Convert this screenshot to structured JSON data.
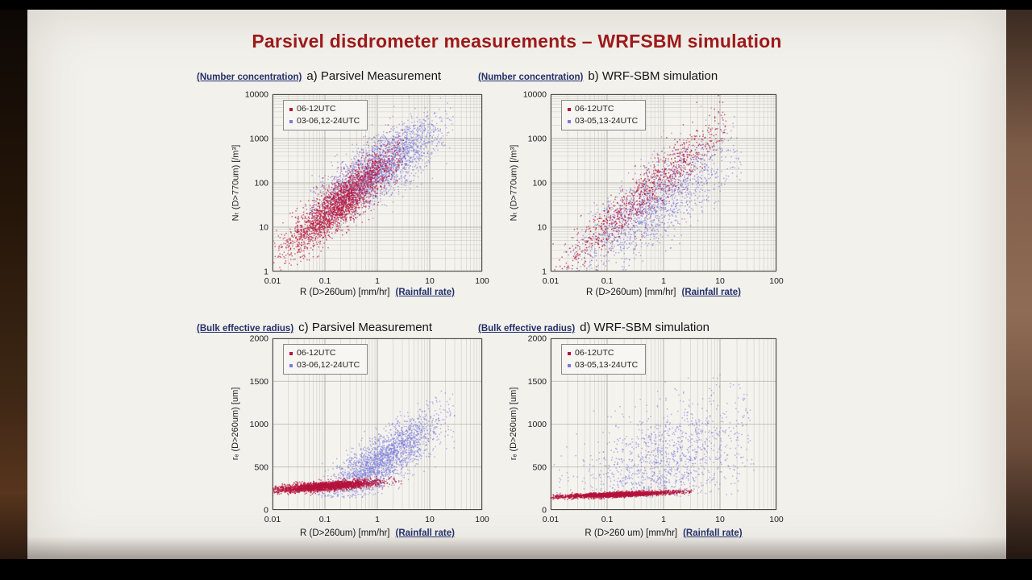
{
  "slide": {
    "title": "Parsivel disdrometer measurements – WRFSBM simulation"
  },
  "chart_data": [
    {
      "id": "a",
      "type": "scatter",
      "annotation": "(Number concentration)",
      "title": "a) Parsivel Measurement",
      "xlabel": "R (D>260um) [mm/hr]",
      "xnote": "(Rainfall rate)",
      "ylabel": "Nₜ (D>770um) [/m³]",
      "x_scale": "log",
      "x_range": [
        0.01,
        100
      ],
      "x_ticks": [
        "0.01",
        "0.1",
        "1",
        "10",
        "100"
      ],
      "y_scale": "log",
      "y_range": [
        1,
        10000
      ],
      "y_ticks": [
        "1",
        "10",
        "100",
        "1000",
        "10000"
      ],
      "grid": "log minor + major, both axes",
      "legend_position": "top-left",
      "legend": [
        {
          "label": "06-12UTC",
          "color": "#b5123c"
        },
        {
          "label": "03-06,12-24UTC",
          "color": "#7b7bdc"
        }
      ],
      "series": [
        {
          "name": "03-06,12-24UTC",
          "color": "#7b7bdc",
          "alpha": 0.55,
          "n": 2400,
          "seed": 101,
          "x_mu": 0.05,
          "x_sd": 0.6,
          "x_clip": [
            -1.3,
            1.45
          ],
          "slope": 0.75,
          "icept": 2.3,
          "noise": 0.35
        },
        {
          "name": "06-12UTC",
          "color": "#b5123c",
          "alpha": 0.6,
          "n": 2600,
          "seed": 102,
          "x_mu": -0.7,
          "x_sd": 0.55,
          "x_clip": [
            -2,
            0.55
          ],
          "slope": 0.96,
          "icept": 2.22,
          "noise": 0.28
        }
      ]
    },
    {
      "id": "b",
      "type": "scatter",
      "annotation": "(Number concentration)",
      "title": "b) WRF-SBM simulation",
      "xlabel": "R (D>260um) [mm/hr]",
      "xnote": "(Rainfall rate)",
      "ylabel": "Nₜ (D>770um) [/m³]",
      "x_scale": "log",
      "x_range": [
        0.01,
        100
      ],
      "x_ticks": [
        "0.01",
        "0.1",
        "1",
        "10",
        "100"
      ],
      "y_scale": "log",
      "y_range": [
        1,
        10000
      ],
      "y_ticks": [
        "1",
        "10",
        "100",
        "1000",
        "10000"
      ],
      "grid": "log minor + major, both axes",
      "legend_position": "top-left",
      "legend": [
        {
          "label": "06-12UTC",
          "color": "#b5123c"
        },
        {
          "label": "03-05,13-24UTC",
          "color": "#7b7bdc"
        }
      ],
      "series": [
        {
          "name": "03-05,13-24UTC",
          "color": "#7b7bdc",
          "alpha": 0.6,
          "n": 1500,
          "seed": 201,
          "x_mu": -0.15,
          "x_sd": 0.7,
          "x_clip": [
            -1.8,
            1.4
          ],
          "slope": 0.85,
          "icept": 1.65,
          "noise": 0.45
        },
        {
          "name": "06-12UTC",
          "color": "#b5123c",
          "alpha": 0.65,
          "n": 1000,
          "seed": 202,
          "x_mu": -0.3,
          "x_sd": 0.85,
          "x_clip": [
            -2,
            1.15
          ],
          "slope": 1.1,
          "icept": 2.1,
          "noise": 0.3
        }
      ]
    },
    {
      "id": "c",
      "type": "scatter",
      "annotation": "(Bulk effective radius)",
      "title": "c) Parsivel Measurement",
      "xlabel": "R (D>260um) [mm/hr]",
      "xnote": "(Rainfall rate)",
      "ylabel": "rₑ (D>260um) [um]",
      "x_scale": "log",
      "x_range": [
        0.01,
        100
      ],
      "x_ticks": [
        "0.01",
        "0.1",
        "1",
        "10",
        "100"
      ],
      "y_scale": "linear",
      "y_range": [
        0,
        2000
      ],
      "y_ticks": [
        "0",
        "500",
        "1000",
        "1500",
        "2000"
      ],
      "grid": "log minor + major on x, major every 500 on y",
      "legend_position": "top-left",
      "legend": [
        {
          "label": "06-12UTC",
          "color": "#b5123c"
        },
        {
          "label": "03-06,12-24UTC",
          "color": "#7b7bdc"
        }
      ],
      "series": [
        {
          "name": "03-06,12-24UTC",
          "color": "#7b7bdc",
          "alpha": 0.55,
          "n": 2300,
          "seed": 301,
          "x_mu": 0.1,
          "x_sd": 0.55,
          "x_clip": [
            -1.3,
            1.5
          ],
          "slope": 380,
          "icept": 550,
          "noise": 150,
          "y_clip": [
            140,
            1900
          ]
        },
        {
          "name": "06-12UTC",
          "color": "#b5123c",
          "alpha": 0.65,
          "n": 2600,
          "seed": 302,
          "x_mu": -1.0,
          "x_sd": 0.5,
          "x_clip": [
            -2,
            0.5
          ],
          "slope": 45,
          "icept": 320,
          "noise": 26,
          "y_clip": [
            130,
            620
          ]
        }
      ]
    },
    {
      "id": "d",
      "type": "scatter",
      "annotation": "(Bulk effective radius)",
      "title": "d) WRF-SBM simulation",
      "xlabel": "R (D>260 um) [mm/hr]",
      "xnote": "(Rainfall rate)",
      "ylabel": "rₑ (D>260um) [um]",
      "x_scale": "log",
      "x_range": [
        0.01,
        100
      ],
      "x_ticks": [
        "0.01",
        "0.1",
        "1",
        "10",
        "100"
      ],
      "y_scale": "linear",
      "y_range": [
        0,
        2000
      ],
      "y_ticks": [
        "0",
        "500",
        "1000",
        "1500",
        "2000"
      ],
      "grid": "log minor + major on x, major every 500 on y",
      "legend_position": "top-left",
      "legend": [
        {
          "label": "06-12UTC",
          "color": "#b5123c"
        },
        {
          "label": "03-05,13-24UTC",
          "color": "#7b7bdc"
        }
      ],
      "series": [
        {
          "name": "03-05,13-24UTC",
          "color": "#7b7bdc",
          "alpha": 0.55,
          "n": 1500,
          "seed": 401,
          "x_mu": 0.0,
          "x_sd": 0.8,
          "x_clip": [
            -2,
            1.6
          ],
          "slope": 250,
          "icept": 500,
          "noise": 350,
          "y_clip": [
            150,
            1950
          ]
        },
        {
          "name": "06-12UTC",
          "color": "#b5123c",
          "alpha": 0.7,
          "n": 2400,
          "seed": 402,
          "x_mu": -0.8,
          "x_sd": 0.55,
          "x_clip": [
            -2,
            0.5
          ],
          "slope": 25,
          "icept": 200,
          "noise": 14,
          "y_clip": [
            110,
            320
          ]
        }
      ]
    }
  ]
}
